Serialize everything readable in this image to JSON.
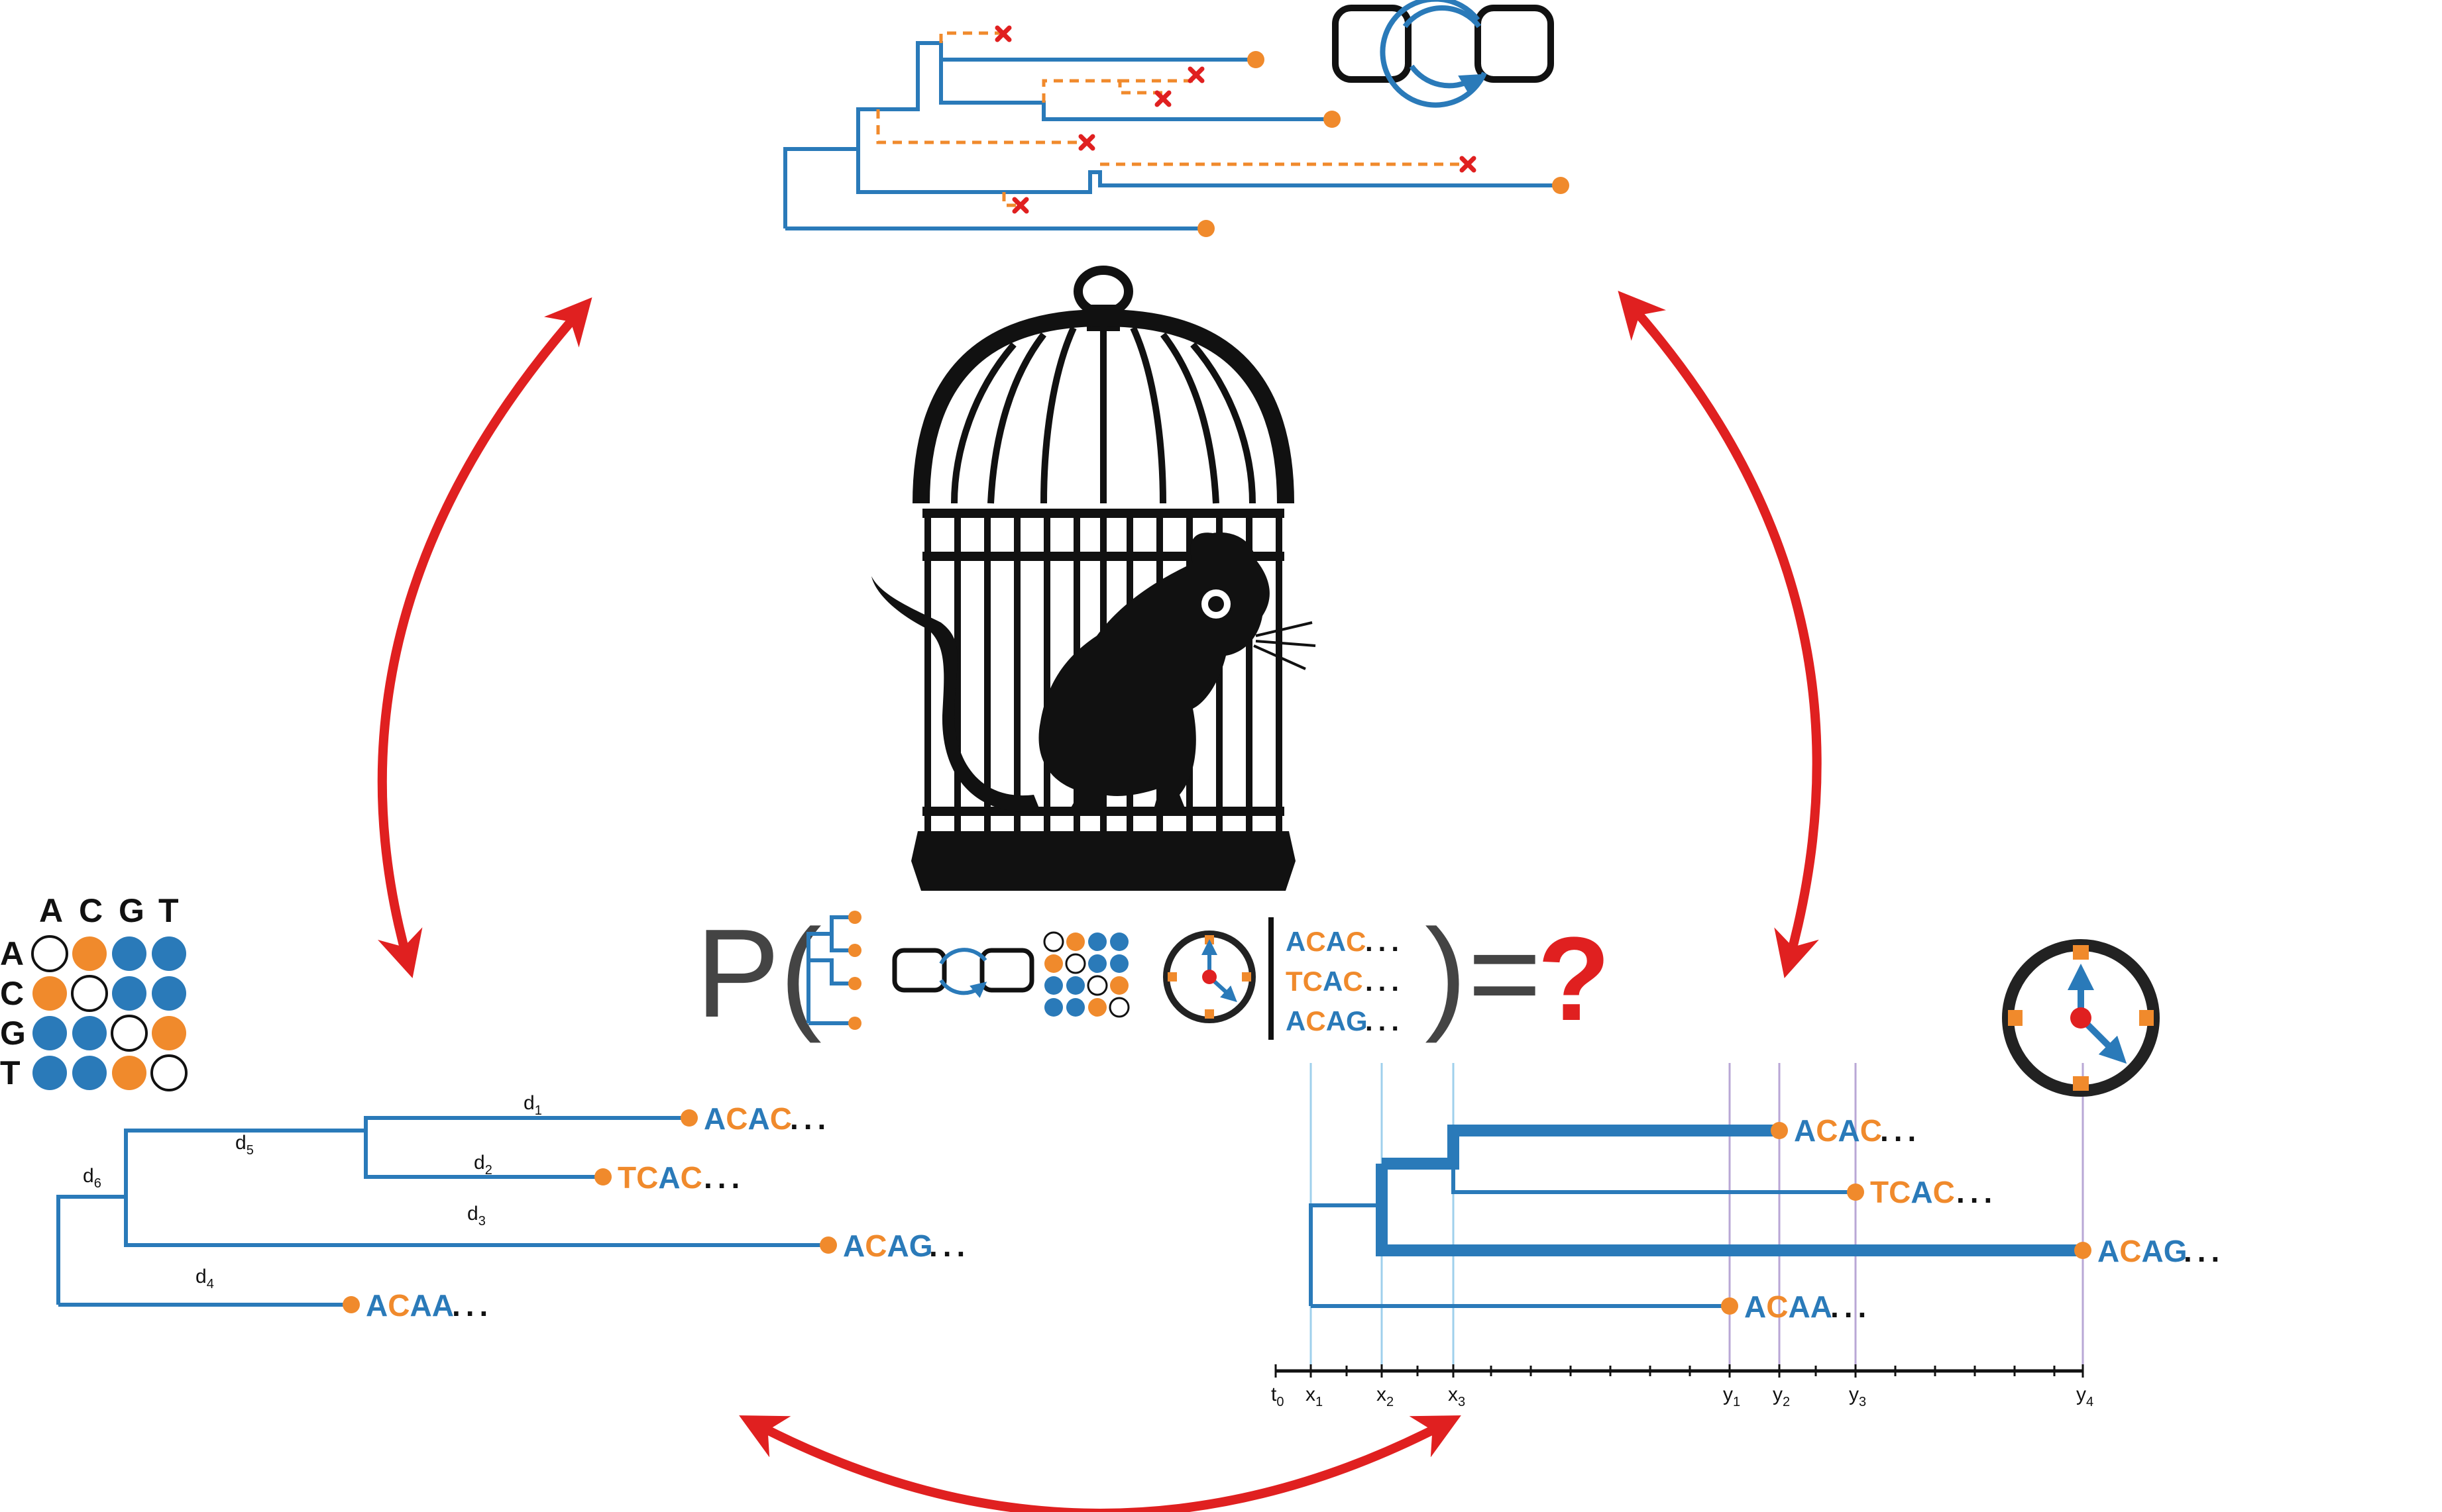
{
  "colors": {
    "blue": "#2a7ab9",
    "orange": "#f08a2c",
    "red": "#e02020",
    "black": "#111111",
    "grey": "#444444",
    "light_blue": "#9fd0ec",
    "lavender": "#b9a7d6"
  },
  "icons": [
    "bird-cage-icon",
    "rat-silhouette-icon",
    "clock-icon",
    "mcmc-loop-icon",
    "substitution-matrix-icon",
    "phylogenetic-tree-icon",
    "extinct-lineage-x-icon"
  ],
  "matrix": {
    "col_headers": [
      "A",
      "C",
      "G",
      "T"
    ],
    "row_headers": [
      "A",
      "C",
      "G",
      "T"
    ],
    "cells": [
      [
        "empty",
        "orange",
        "blue",
        "blue"
      ],
      [
        "orange",
        "empty",
        "blue",
        "blue"
      ],
      [
        "blue",
        "blue",
        "empty",
        "orange"
      ],
      [
        "blue",
        "blue",
        "orange",
        "empty"
      ]
    ]
  },
  "left_tree": {
    "branch_labels": [
      "d",
      "d",
      "d",
      "d",
      "d",
      "d"
    ],
    "branch_subscripts": [
      "1",
      "2",
      "3",
      "4",
      "5",
      "6"
    ],
    "tips": [
      [
        [
          "A",
          "blue"
        ],
        [
          "C",
          "orange"
        ],
        [
          "A",
          "blue"
        ],
        [
          "C",
          "orange"
        ]
      ],
      [
        [
          "T",
          "orange"
        ],
        [
          "C",
          "orange"
        ],
        [
          "A",
          "blue"
        ],
        [
          "C",
          "orange"
        ]
      ],
      [
        [
          "A",
          "blue"
        ],
        [
          "C",
          "orange"
        ],
        [
          "A",
          "blue"
        ],
        [
          "G",
          "blue"
        ]
      ],
      [
        [
          "A",
          "blue"
        ],
        [
          "C",
          "orange"
        ],
        [
          "A",
          "blue"
        ],
        [
          "A",
          "blue"
        ]
      ]
    ],
    "ellipsis": "..."
  },
  "timeline": {
    "labels": [
      "t",
      "x",
      "x",
      "x",
      "y",
      "y",
      "y",
      "y"
    ],
    "subscripts": [
      "0",
      "1",
      "2",
      "3",
      "1",
      "2",
      "3",
      "4"
    ],
    "tips": [
      [
        [
          "A",
          "blue"
        ],
        [
          "C",
          "orange"
        ],
        [
          "A",
          "blue"
        ],
        [
          "C",
          "orange"
        ]
      ],
      [
        [
          "T",
          "orange"
        ],
        [
          "C",
          "orange"
        ],
        [
          "A",
          "blue"
        ],
        [
          "C",
          "orange"
        ]
      ],
      [
        [
          "A",
          "blue"
        ],
        [
          "C",
          "orange"
        ],
        [
          "A",
          "blue"
        ],
        [
          "G",
          "blue"
        ]
      ],
      [
        [
          "A",
          "blue"
        ],
        [
          "C",
          "orange"
        ],
        [
          "A",
          "blue"
        ],
        [
          "A",
          "blue"
        ]
      ]
    ],
    "ellipsis": "..."
  },
  "formula": {
    "prefix": "P(",
    "close": ")",
    "equals": "=",
    "question": "?",
    "sequences": [
      [
        [
          "A",
          "blue"
        ],
        [
          "C",
          "orange"
        ],
        [
          "A",
          "blue"
        ],
        [
          "C",
          "orange"
        ]
      ],
      [
        [
          "T",
          "orange"
        ],
        [
          "C",
          "orange"
        ],
        [
          "A",
          "blue"
        ],
        [
          "C",
          "orange"
        ]
      ],
      [
        [
          "A",
          "blue"
        ],
        [
          "C",
          "orange"
        ],
        [
          "A",
          "blue"
        ],
        [
          "G",
          "blue"
        ]
      ]
    ],
    "ellipsis": "..."
  }
}
